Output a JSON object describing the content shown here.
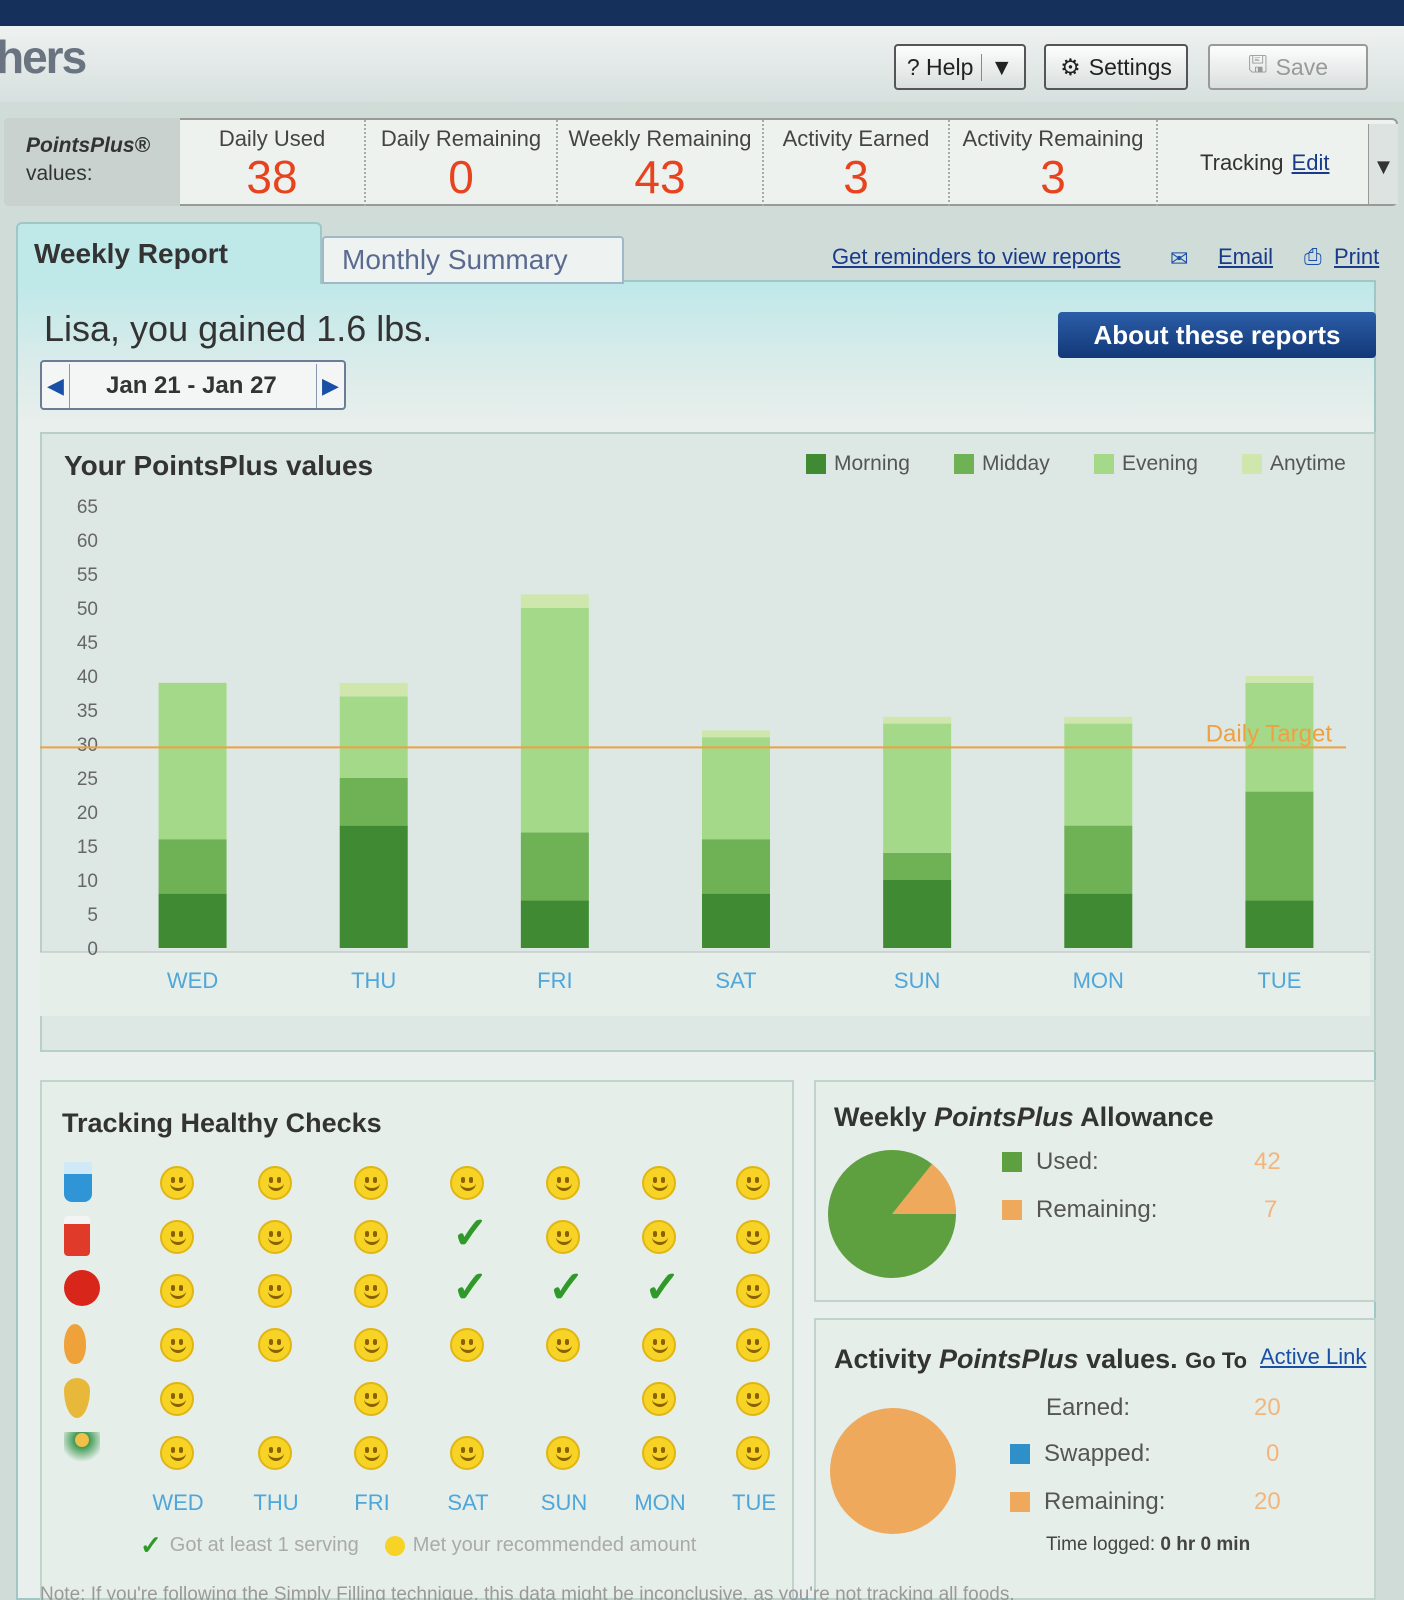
{
  "header": {
    "brand": "hers",
    "help_label": "? Help",
    "settings_label": "Settings",
    "save_label": "Save"
  },
  "summary": {
    "label_line1": "PointsPlus®",
    "label_line2": "values:",
    "stats": [
      {
        "label": "Daily Used",
        "value": "38"
      },
      {
        "label": "Daily Remaining",
        "value": "0"
      },
      {
        "label": "Weekly Remaining",
        "value": "43"
      },
      {
        "label": "Activity Earned",
        "value": "3"
      },
      {
        "label": "Activity Remaining",
        "value": "3"
      }
    ],
    "tracking_label": "Tracking",
    "edit_label": "Edit"
  },
  "tabs": {
    "weekly": "Weekly Report",
    "monthly": "Monthly Summary"
  },
  "links": {
    "reminders": "Get reminders to view reports",
    "email": "Email",
    "print": "Print"
  },
  "greeting": "Lisa, you gained 1.6 lbs.",
  "about_button": "About these reports",
  "date_range": "Jan 21 - Jan 27",
  "chart_title": "Your PointsPlus values",
  "colors": {
    "morning": "#3f8a32",
    "midday": "#6eb255",
    "evening": "#a5d98a",
    "anytime": "#cfe6ad",
    "target": "#f0a040",
    "orange": "#efa95c",
    "blue": "#2f8fc9"
  },
  "chart_data": {
    "type": "bar",
    "stacked": true,
    "categories": [
      "WED",
      "THU",
      "FRI",
      "SAT",
      "SUN",
      "MON",
      "TUE"
    ],
    "series": [
      {
        "name": "Morning",
        "values": [
          8,
          18,
          7,
          8,
          10,
          8,
          7
        ]
      },
      {
        "name": "Midday",
        "values": [
          8,
          7,
          10,
          8,
          4,
          10,
          16
        ]
      },
      {
        "name": "Evening",
        "values": [
          23,
          12,
          33,
          15,
          19,
          15,
          16
        ]
      },
      {
        "name": "Anytime",
        "values": [
          0,
          2,
          2,
          1,
          1,
          1,
          1
        ]
      }
    ],
    "ylim": [
      0,
      65
    ],
    "yticks": [
      0,
      5,
      10,
      15,
      20,
      25,
      30,
      35,
      40,
      45,
      50,
      55,
      60,
      65
    ],
    "reference_line": {
      "label": "Daily Target",
      "value": 29.5
    }
  },
  "healthy_checks": {
    "title": "Tracking Healthy Checks",
    "icons": [
      "water-icon",
      "dairy-icon",
      "fruit-icon",
      "vegetable-icon",
      "oil-icon",
      "activity-icon"
    ],
    "days": [
      "WED",
      "THU",
      "FRI",
      "SAT",
      "SUN",
      "MON",
      "TUE"
    ],
    "grid": [
      [
        "smile",
        "smile",
        "smile",
        "smile",
        "smile",
        "smile",
        "smile"
      ],
      [
        "smile",
        "smile",
        "smile",
        "check",
        "smile",
        "smile",
        "smile"
      ],
      [
        "smile",
        "smile",
        "smile",
        "check",
        "check",
        "check",
        "smile"
      ],
      [
        "smile",
        "smile",
        "smile",
        "smile",
        "smile",
        "smile",
        "smile"
      ],
      [
        "smile",
        "",
        "smile",
        "",
        "",
        "smile",
        "smile"
      ],
      [
        "smile",
        "smile",
        "smile",
        "smile",
        "smile",
        "smile",
        "smile"
      ]
    ],
    "legend_check": "Got at least 1 serving",
    "legend_smile": "Met your recommended amount"
  },
  "weekly_allowance": {
    "title_pre": "Weekly ",
    "title_em": "PointsPlus",
    "title_post": " Allowance",
    "used_label": "Used:",
    "used_value": "42",
    "remaining_label": "Remaining:",
    "remaining_value": "7"
  },
  "activity": {
    "title_pre": "Activity ",
    "title_em": "PointsPlus",
    "title_post": " values.",
    "goto_label": "Go To",
    "link_label": "Active Link",
    "earned_label": "Earned:",
    "earned_value": "20",
    "swapped_label": "Swapped:",
    "swapped_value": "0",
    "remaining_label": "Remaining:",
    "remaining_value": "20",
    "time_label": "Time logged:",
    "time_value": "0 hr 0 min"
  },
  "note": "Note: If you're following the Simply Filling technique, this data might be inconclusive, as you're not tracking all foods."
}
